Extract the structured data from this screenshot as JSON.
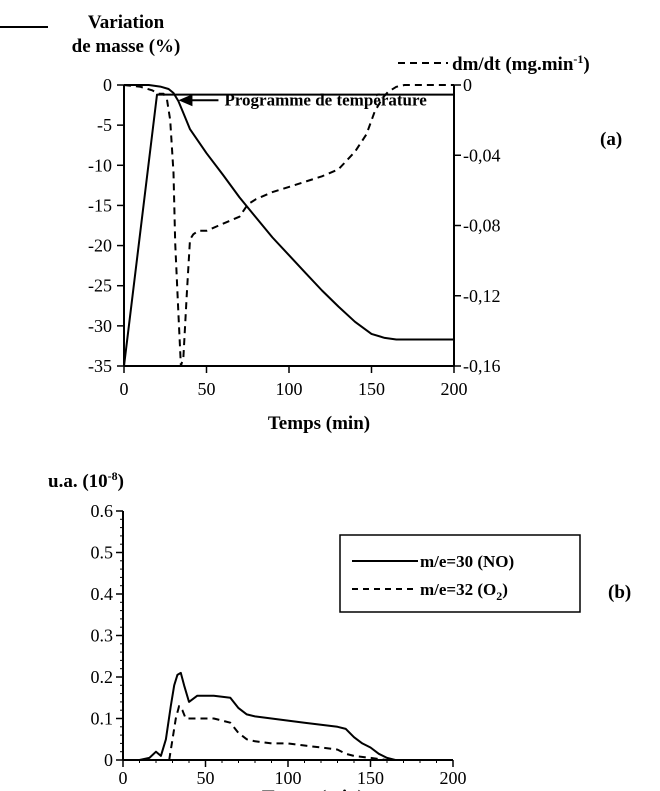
{
  "chart_data": [
    {
      "panel_label": "(a)",
      "type": "line",
      "xlabel": "Temps (min)",
      "xlim": [
        0,
        200
      ],
      "xticks": [
        0,
        50,
        100,
        150,
        200
      ],
      "y_left": {
        "label_line1": "Variation",
        "label_line2": "de masse (%)",
        "ylim": [
          -35,
          0
        ],
        "ticks": [
          0,
          -5,
          -10,
          -15,
          -20,
          -25,
          -30,
          -35
        ]
      },
      "y_right": {
        "label": "dm/dt (mg.min-1)",
        "label_main": "dm/dt  (mg.min",
        "label_sup": "-1",
        "label_close": ")",
        "ylim": [
          -0.16,
          0
        ],
        "ticks": [
          "0",
          "-0,04",
          "-0,08",
          "-0,12",
          "-0,16"
        ],
        "tick_values": [
          0,
          -0.04,
          -0.08,
          -0.12,
          -0.16
        ]
      },
      "annotation": "Programme de température",
      "series": [
        {
          "key": "mass_variation",
          "axis": "left",
          "style": "solid",
          "x": [
            0,
            8,
            15,
            22,
            27,
            30,
            33,
            36,
            40,
            50,
            60,
            70,
            80,
            90,
            100,
            110,
            120,
            130,
            140,
            150,
            158,
            165,
            175,
            185,
            200
          ],
          "y": [
            0,
            0,
            0,
            -0.2,
            -0.5,
            -1,
            -2,
            -3.5,
            -5.5,
            -8.5,
            -11.2,
            -14,
            -16.5,
            -19,
            -21.2,
            -23.4,
            -25.6,
            -27.6,
            -29.5,
            -31,
            -31.5,
            -31.7,
            -31.7,
            -31.7,
            -31.7
          ]
        },
        {
          "key": "dm_dt",
          "axis": "right",
          "style": "dashed",
          "x": [
            0,
            10,
            17,
            21,
            24,
            26,
            28,
            30,
            31,
            33,
            34.5,
            36,
            38,
            40,
            42,
            45,
            50,
            60,
            70,
            75,
            80,
            90,
            100,
            110,
            120,
            130,
            140,
            147,
            152,
            157,
            160,
            165,
            170,
            180,
            190,
            200
          ],
          "y": [
            0,
            -0.001,
            -0.003,
            -0.005,
            -0.005,
            -0.008,
            -0.02,
            -0.05,
            -0.09,
            -0.13,
            -0.16,
            -0.155,
            -0.12,
            -0.088,
            -0.085,
            -0.083,
            -0.083,
            -0.079,
            -0.075,
            -0.068,
            -0.065,
            -0.061,
            -0.058,
            -0.055,
            -0.052,
            -0.048,
            -0.038,
            -0.028,
            -0.015,
            -0.007,
            -0.004,
            -0.001,
            0,
            0,
            0,
            0
          ]
        },
        {
          "key": "temperature_program",
          "axis": "left",
          "style": "solid",
          "x": [
            0,
            20,
            28,
            200
          ],
          "y": [
            -35,
            -1.2,
            -1.2,
            -1.2
          ]
        }
      ]
    },
    {
      "panel_label": "(b)",
      "type": "line",
      "xlabel": "Temps (min)",
      "xlim": [
        0,
        200
      ],
      "xticks": [
        0,
        50,
        100,
        150,
        200
      ],
      "y_left": {
        "label_main": "u.a.  (10",
        "label_sup": "-8",
        "label_close": ")",
        "ylim": [
          0,
          0.6
        ],
        "ticks": [
          0,
          0.1,
          0.2,
          0.3,
          0.4,
          0.5,
          0.6
        ]
      },
      "legend": [
        {
          "key": "no",
          "style": "solid",
          "label": "m/e=30  (NO)"
        },
        {
          "key": "o2",
          "style": "dashed",
          "label_main": "m/e=32  (O",
          "label_sub": "2",
          "label_close": ")"
        }
      ],
      "series": [
        {
          "key": "no",
          "style": "solid",
          "x": [
            10,
            16,
            20,
            23,
            26,
            29,
            31,
            33,
            35,
            37,
            40,
            45,
            55,
            65,
            70,
            75,
            80,
            90,
            100,
            110,
            120,
            130,
            135,
            140,
            145,
            150,
            155,
            160,
            165
          ],
          "y": [
            0,
            0.005,
            0.02,
            0.01,
            0.05,
            0.13,
            0.18,
            0.205,
            0.21,
            0.18,
            0.14,
            0.155,
            0.155,
            0.15,
            0.125,
            0.11,
            0.105,
            0.1,
            0.095,
            0.09,
            0.085,
            0.08,
            0.075,
            0.055,
            0.04,
            0.03,
            0.015,
            0.005,
            0
          ]
        },
        {
          "key": "o2",
          "style": "dashed",
          "x": [
            28,
            30,
            32,
            34,
            36,
            38,
            40,
            45,
            55,
            65,
            70,
            75,
            80,
            90,
            100,
            110,
            120,
            130,
            135,
            140,
            150,
            160,
            165
          ],
          "y": [
            0,
            0.05,
            0.1,
            0.13,
            0.12,
            0.1,
            0.1,
            0.1,
            0.1,
            0.09,
            0.065,
            0.05,
            0.045,
            0.04,
            0.04,
            0.035,
            0.03,
            0.025,
            0.015,
            0.01,
            0.005,
            0,
            0
          ]
        }
      ]
    }
  ]
}
